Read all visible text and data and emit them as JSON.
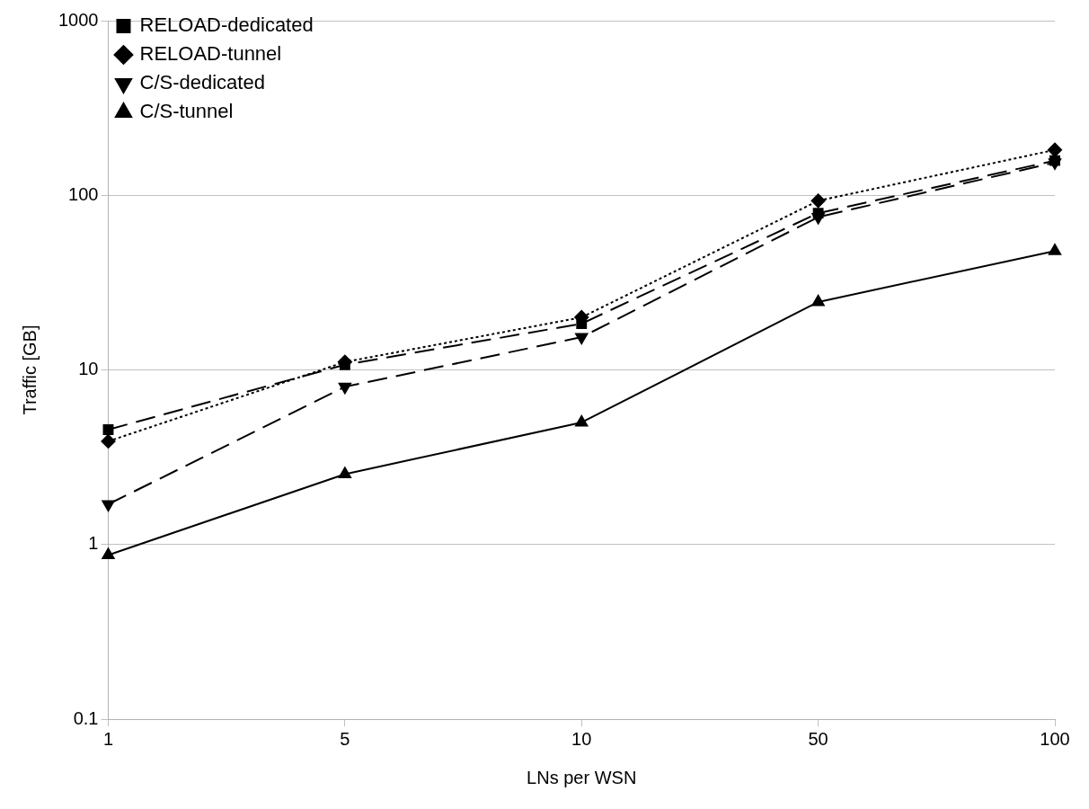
{
  "chart_data": {
    "type": "line",
    "xlabel": "LNs per WSN",
    "ylabel": "Traffic [GB]",
    "categories": [
      "1",
      "5",
      "10",
      "50",
      "100"
    ],
    "series": [
      {
        "name": "RELOAD-dedicated",
        "color": "#000000",
        "values": [
          4.55,
          10.7,
          18.4,
          79,
          158
        ],
        "marker": "square",
        "line_style": "dashed"
      },
      {
        "name": "RELOAD-tunnel",
        "color": "#000000",
        "values": [
          3.9,
          11.1,
          20,
          93,
          182
        ],
        "marker": "diamond",
        "line_style": "dotted"
      },
      {
        "name": "C/S-dedicated",
        "color": "#000000",
        "values": [
          1.7,
          8.0,
          15.4,
          75,
          154
        ],
        "marker": "triangle-down",
        "line_style": "dashed"
      },
      {
        "name": "C/S-tunnel",
        "color": "#000000",
        "values": [
          0.87,
          2.53,
          5.0,
          24.5,
          48
        ],
        "marker": "triangle",
        "line_style": "solid"
      }
    ],
    "log": "y",
    "ylim": [
      0.1,
      1000
    ],
    "yticks": [
      0.1,
      1,
      10,
      100,
      1000
    ],
    "grid": "y",
    "legend": "top left"
  }
}
